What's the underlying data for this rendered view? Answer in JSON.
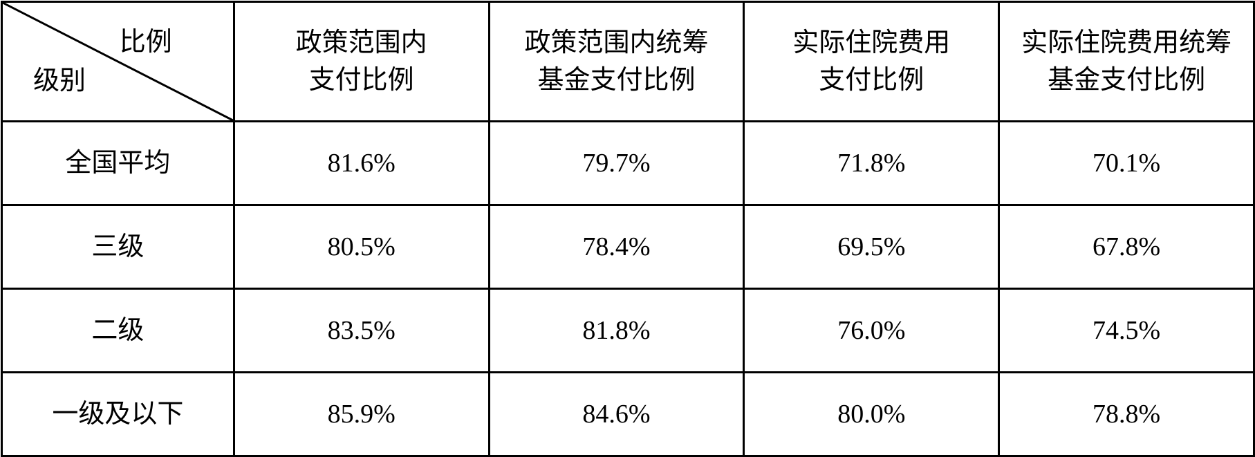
{
  "table": {
    "corner": {
      "top_label": "比例",
      "bottom_label": "级别"
    },
    "columns": [
      [
        "政策范围内",
        "支付比例"
      ],
      [
        "政策范围内统筹",
        "基金支付比例"
      ],
      [
        "实际住院费用",
        "支付比例"
      ],
      [
        "实际住院费用统筹",
        "基金支付比例"
      ]
    ],
    "rows": [
      {
        "level": "全国平均",
        "values": [
          "81.6%",
          "79.7%",
          "71.8%",
          "70.1%"
        ]
      },
      {
        "level": "三级",
        "values": [
          "80.5%",
          "78.4%",
          "69.5%",
          "67.8%"
        ]
      },
      {
        "level": "二级",
        "values": [
          "83.5%",
          "81.8%",
          "76.0%",
          "74.5%"
        ]
      },
      {
        "level": "一级及以下",
        "values": [
          "85.9%",
          "84.6%",
          "80.0%",
          "78.8%"
        ]
      }
    ]
  }
}
